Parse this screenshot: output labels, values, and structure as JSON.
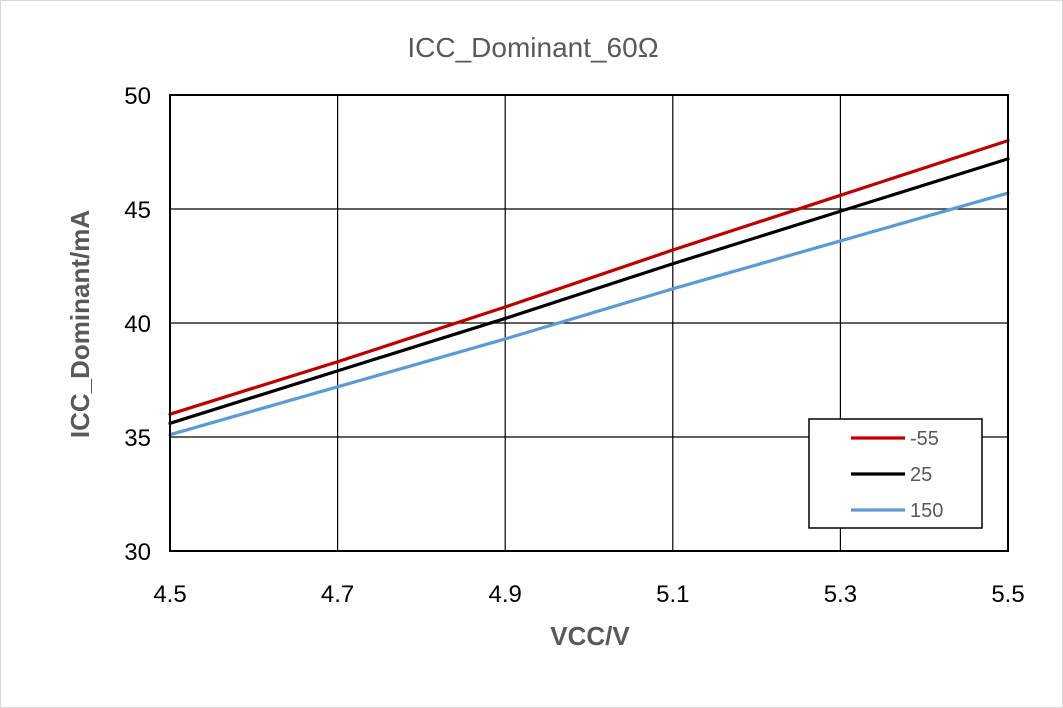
{
  "chart_data": {
    "type": "line",
    "title": "ICC_Dominant_60Ω",
    "xlabel": "VCC/V",
    "ylabel": "ICC_Dominant/mA",
    "xlim": [
      4.5,
      5.5
    ],
    "ylim": [
      30,
      50
    ],
    "x_ticks": [
      "4.5",
      "4.7",
      "4.9",
      "5.1",
      "5.3",
      "5.5"
    ],
    "y_ticks": [
      "30",
      "35",
      "40",
      "45",
      "50"
    ],
    "grid": true,
    "legend_position": "bottom-right",
    "x": [
      4.5,
      4.7,
      4.9,
      5.1,
      5.3,
      5.5
    ],
    "series": [
      {
        "name": "-55",
        "color": "#c00000",
        "values": [
          36.0,
          38.3,
          40.7,
          43.2,
          45.6,
          48.0
        ]
      },
      {
        "name": "25",
        "color": "#000000",
        "values": [
          35.6,
          37.9,
          40.2,
          42.6,
          44.9,
          47.2
        ]
      },
      {
        "name": "150",
        "color": "#5b9bd5",
        "values": [
          35.1,
          37.2,
          39.3,
          41.5,
          43.6,
          45.7
        ]
      }
    ]
  }
}
